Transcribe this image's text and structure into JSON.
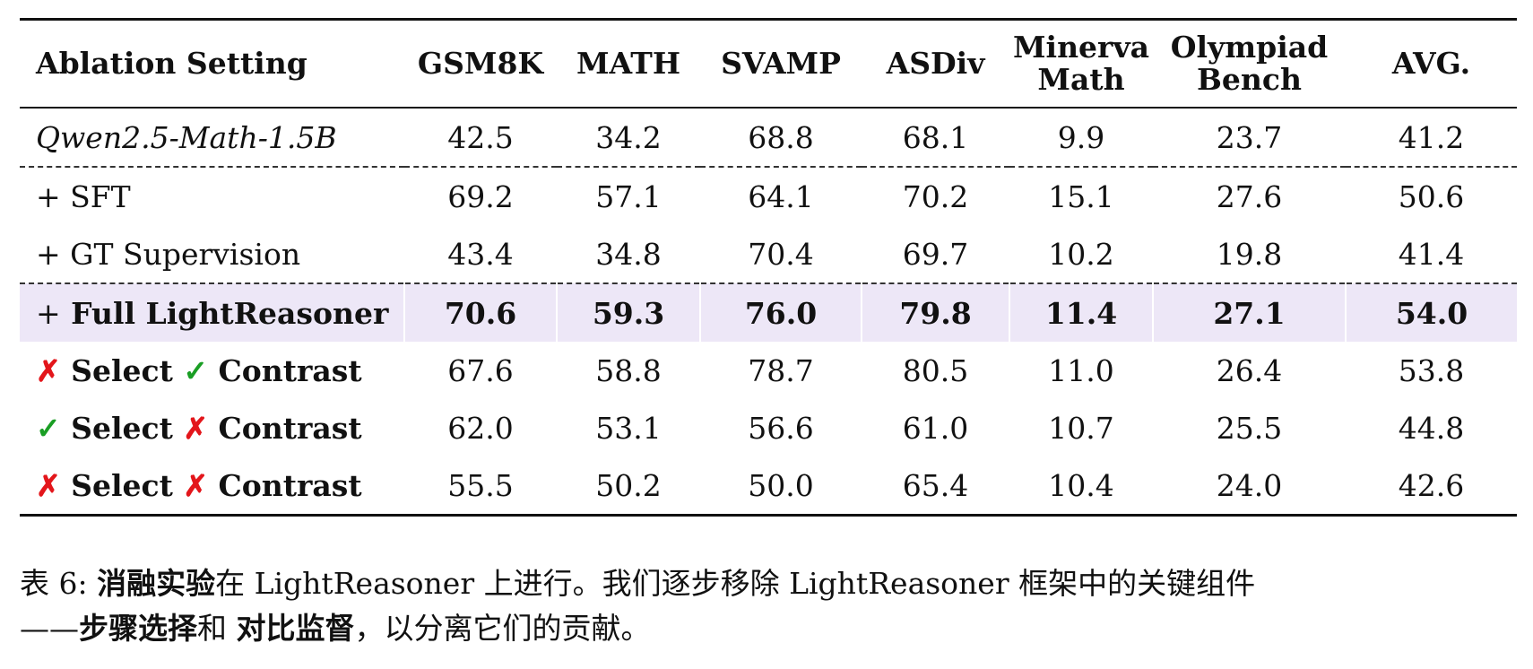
{
  "table": {
    "headers": [
      "Ablation Setting",
      "GSM8K",
      "MATH",
      "SVAMP",
      "ASDiv",
      "Minerva\nMath",
      "Olympiad\nBench",
      "AVG."
    ],
    "base_row": {
      "label": "Qwen2.5-Math-1.5B",
      "values": [
        "42.5",
        "34.2",
        "68.8",
        "68.1",
        "9.9",
        "23.7",
        "41.2"
      ]
    },
    "sft_row": {
      "label": "+ SFT",
      "values": [
        "69.2",
        "57.1",
        "64.1",
        "70.2",
        "15.1",
        "27.6",
        "50.6"
      ]
    },
    "gt_row": {
      "label": "+ GT Supervision",
      "values": [
        "43.4",
        "34.8",
        "70.4",
        "69.7",
        "10.2",
        "19.8",
        "41.4"
      ]
    },
    "full_row": {
      "plus": "+",
      "label": "Full LightReasoner",
      "values": [
        "70.6",
        "59.3",
        "76.0",
        "79.8",
        "11.4",
        "27.1",
        "54.0"
      ]
    },
    "ablation_rows": [
      {
        "mark1": "✗",
        "word1": "Select",
        "mark2": "✓",
        "word2": "Contrast",
        "values": [
          "67.6",
          "58.8",
          "78.7",
          "80.5",
          "11.0",
          "26.4",
          "53.8"
        ]
      },
      {
        "mark1": "✓",
        "word1": "Select",
        "mark2": "✗",
        "word2": "Contrast",
        "values": [
          "62.0",
          "53.1",
          "56.6",
          "61.0",
          "10.7",
          "25.5",
          "44.8"
        ]
      },
      {
        "mark1": "✗",
        "word1": "Select",
        "mark2": "✗",
        "word2": "Contrast",
        "values": [
          "55.5",
          "50.2",
          "50.0",
          "65.4",
          "10.4",
          "24.0",
          "42.6"
        ]
      }
    ]
  },
  "caption": {
    "prefix": "表 6: ",
    "bold1": "消融实验",
    "text1": "在 LightReasoner 上进行。我们逐步移除 LightReasoner 框架中的关键组件",
    "dash": "——",
    "bold2": "步骤选择",
    "text2": "和 ",
    "bold3": "对比监督",
    "text3": "，以分离它们的贡献。"
  },
  "colors": {
    "highlight": "#ede7f7",
    "cross": "#e3161b",
    "check": "#1a9e24"
  }
}
